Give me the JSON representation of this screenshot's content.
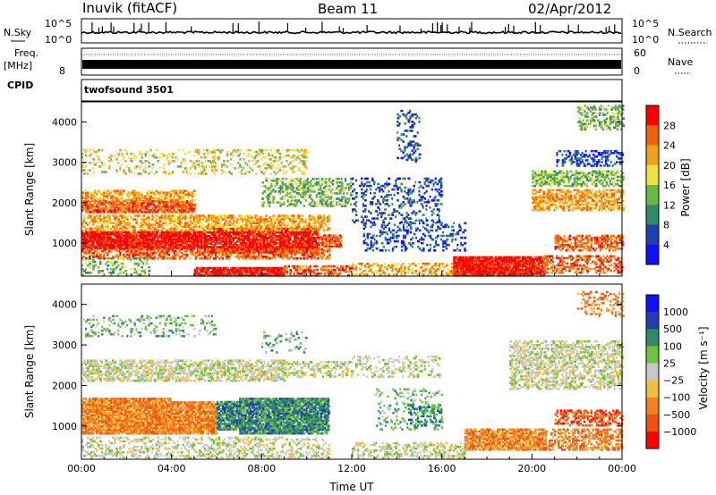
{
  "header": {
    "station": "Inuvik (fitACF)",
    "beam": "Beam 11",
    "date": "02/Apr/2012"
  },
  "colors": {
    "frame": "#000000",
    "power_scale": [
      "#1010ff",
      "#1f40b0",
      "#2f8a66",
      "#6ab840",
      "#f0e040",
      "#f0a020",
      "#f06010",
      "#ff0000"
    ],
    "velocity_scale": [
      "#ff0000",
      "#f05010",
      "#f08020",
      "#f0c040",
      "#c8c8c8",
      "#70c040",
      "#2f8a66",
      "#1f40b0",
      "#1010ff"
    ]
  },
  "chart_data": [
    {
      "type": "line",
      "name": "nsky-noise-panel",
      "ylabel_left": "N.Sky",
      "ylabel_right": "N.Search",
      "left_ticks": [
        "10^5",
        "10^0"
      ],
      "right_ticks": [
        "10^5",
        "10^0"
      ],
      "x": [
        "00:00",
        "24:00"
      ],
      "values_log10": [
        2.0,
        2.0
      ]
    },
    {
      "type": "line",
      "name": "frequency-panel",
      "ylabel_left": "Freq.",
      "ylabel_left_unit": "[MHz]",
      "ylabel_right": "Nave",
      "left_ticks": [
        "8"
      ],
      "right_ticks": [
        "60",
        "0"
      ],
      "ylim": [
        8,
        14
      ]
    },
    {
      "type": "table",
      "name": "cpid-panel",
      "label": "CPID",
      "program": "twofsound 3501"
    },
    {
      "type": "heatmap",
      "name": "power-panel",
      "ylabel": "Slant Range [km]",
      "xlim_hours": [
        0,
        24
      ],
      "ylim": [
        180,
        4500
      ],
      "yticks": [
        "1000",
        "2000",
        "3000",
        "4000"
      ],
      "colorbar_label": "Power [dB]",
      "colorbar_ticks": [
        "4",
        "8",
        "12",
        "16",
        "20",
        "24",
        "28"
      ],
      "colorbar_range": [
        0,
        32
      ]
    },
    {
      "type": "heatmap",
      "name": "velocity-panel",
      "ylabel": "Slant Range [km]",
      "xlabel": "Time UT",
      "xticks": [
        "00:00",
        "04:00",
        "08:00",
        "12:00",
        "16:00",
        "20:00",
        "00:00"
      ],
      "xlim_hours": [
        0,
        24
      ],
      "ylim": [
        180,
        4500
      ],
      "yticks": [
        "1000",
        "2000",
        "3000",
        "4000"
      ],
      "colorbar_label": "Velocity [m s⁻¹]",
      "colorbar_ticks": [
        "1000",
        "500",
        "100",
        "25",
        "−25",
        "−100",
        "−500",
        "−1000"
      ]
    }
  ]
}
